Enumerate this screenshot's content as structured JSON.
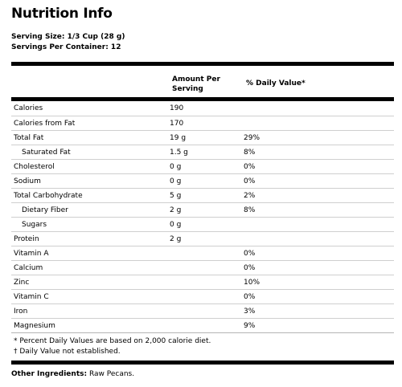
{
  "title": "Nutrition Info",
  "serving_size": "Serving Size: 1/3 Cup (28 g)",
  "servings_per_container": "Servings Per Container: 12",
  "columns": {
    "amount_line1": "Amount Per",
    "amount_line2": "Serving",
    "daily_value": "% Daily Value*"
  },
  "rows": [
    {
      "name": "Calories",
      "amount": "190",
      "dv": ""
    },
    {
      "name": "Calories from Fat",
      "amount": "170",
      "dv": ""
    },
    {
      "name": "Total Fat",
      "amount": "19 g",
      "dv": "29%"
    },
    {
      "name": "Saturated Fat",
      "amount": "1.5 g",
      "dv": "8%"
    },
    {
      "name": "Cholesterol",
      "amount": "0 g",
      "dv": "0%"
    },
    {
      "name": "Sodium",
      "amount": "0 g",
      "dv": "0%"
    },
    {
      "name": "Total Carbohydrate",
      "amount": "5 g",
      "dv": "2%"
    },
    {
      "name": "Dietary Fiber",
      "amount": "2 g",
      "dv": "8%"
    },
    {
      "name": "Sugars",
      "amount": "0 g",
      "dv": ""
    },
    {
      "name": "Protein",
      "amount": "2 g",
      "dv": ""
    },
    {
      "name": "Vitamin A",
      "amount": "",
      "dv": "0%"
    },
    {
      "name": "Calcium",
      "amount": "",
      "dv": "0%"
    },
    {
      "name": "Zinc",
      "amount": "",
      "dv": "10%"
    },
    {
      "name": "Vitamin C",
      "amount": "",
      "dv": "0%"
    },
    {
      "name": "Iron",
      "amount": "",
      "dv": "3%"
    },
    {
      "name": "Magnesium",
      "amount": "",
      "dv": "9%"
    }
  ],
  "footnotes": [
    "* Percent Daily Values are based on 2,000 calorie diet.",
    "† Daily Value not established."
  ],
  "other_ingredients": {
    "label": "Other Ingredients:",
    "value": "Raw Pecans."
  }
}
